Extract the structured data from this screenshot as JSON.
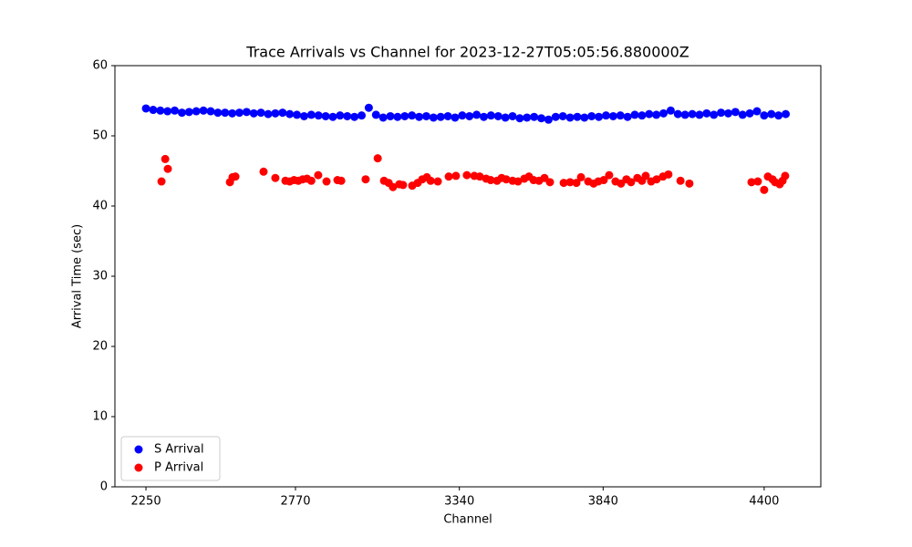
{
  "chart_data": {
    "type": "scatter",
    "title": "Trace Arrivals vs Channel for 2023-12-27T05:05:56.880000Z",
    "x_label": "Channel",
    "y_label": "Arrival Time (sec)",
    "xlim": [
      2142,
      4597
    ],
    "ylim": [
      0,
      60
    ],
    "xticks": [
      2250,
      2770,
      3340,
      3840,
      4400
    ],
    "yticks": [
      0,
      10,
      20,
      30,
      40,
      50,
      60
    ],
    "grid": false,
    "legend": "lower left",
    "series": [
      {
        "name": "S Arrival",
        "color": "#0000ff",
        "x": [
          2250,
          2275,
          2300,
          2325,
          2350,
          2375,
          2400,
          2425,
          2450,
          2475,
          2500,
          2525,
          2550,
          2575,
          2600,
          2625,
          2650,
          2675,
          2700,
          2725,
          2750,
          2775,
          2800,
          2825,
          2850,
          2875,
          2900,
          2925,
          2950,
          2975,
          3000,
          3025,
          3050,
          3075,
          3100,
          3125,
          3150,
          3175,
          3200,
          3225,
          3250,
          3275,
          3300,
          3325,
          3350,
          3375,
          3400,
          3425,
          3450,
          3475,
          3500,
          3525,
          3550,
          3575,
          3600,
          3625,
          3650,
          3675,
          3700,
          3725,
          3750,
          3775,
          3800,
          3825,
          3850,
          3875,
          3900,
          3925,
          3950,
          3975,
          4000,
          4025,
          4050,
          4075,
          4100,
          4125,
          4150,
          4175,
          4200,
          4225,
          4250,
          4275,
          4300,
          4325,
          4350,
          4375,
          4400,
          4425,
          4450,
          4475
        ],
        "values": [
          53.9,
          53.7,
          53.6,
          53.5,
          53.6,
          53.3,
          53.4,
          53.5,
          53.6,
          53.5,
          53.3,
          53.3,
          53.2,
          53.3,
          53.4,
          53.2,
          53.3,
          53.1,
          53.2,
          53.3,
          53.1,
          53.0,
          52.8,
          53.0,
          52.9,
          52.8,
          52.7,
          52.9,
          52.8,
          52.7,
          52.9,
          54.0,
          53.0,
          52.6,
          52.8,
          52.7,
          52.8,
          52.9,
          52.7,
          52.8,
          52.6,
          52.7,
          52.8,
          52.6,
          52.9,
          52.8,
          53.0,
          52.7,
          52.9,
          52.8,
          52.6,
          52.8,
          52.5,
          52.6,
          52.7,
          52.5,
          52.3,
          52.7,
          52.8,
          52.6,
          52.7,
          52.6,
          52.8,
          52.7,
          52.9,
          52.8,
          52.9,
          52.7,
          53.0,
          52.9,
          53.1,
          53.0,
          53.2,
          53.6,
          53.1,
          53.0,
          53.1,
          53.0,
          53.2,
          53.0,
          53.3,
          53.2,
          53.4,
          53.0,
          53.2,
          53.5,
          52.9,
          53.1,
          52.9,
          53.1
        ]
      },
      {
        "name": "P Arrival",
        "color": "#ff0000",
        "x": [
          2304,
          2317,
          2326,
          2542,
          2551,
          2561,
          2659,
          2700,
          2735,
          2750,
          2765,
          2780,
          2795,
          2810,
          2825,
          2849,
          2878,
          2916,
          2929,
          3014,
          3056,
          3078,
          3094,
          3109,
          3131,
          3144,
          3176,
          3195,
          3211,
          3227,
          3240,
          3265,
          3303,
          3328,
          3366,
          3392,
          3411,
          3433,
          3449,
          3471,
          3487,
          3503,
          3525,
          3544,
          3566,
          3582,
          3598,
          3617,
          3636,
          3655,
          3703,
          3725,
          3747,
          3763,
          3788,
          3807,
          3823,
          3842,
          3861,
          3883,
          3902,
          3921,
          3937,
          3959,
          3975,
          3988,
          4007,
          4026,
          4048,
          4067,
          4109,
          4140,
          4356,
          4378,
          4400,
          4413,
          4429,
          4438,
          4454,
          4464,
          4473
        ],
        "values": [
          43.5,
          46.7,
          45.3,
          43.4,
          44.1,
          44.2,
          44.9,
          44.0,
          43.6,
          43.5,
          43.7,
          43.6,
          43.8,
          43.9,
          43.6,
          44.4,
          43.5,
          43.7,
          43.6,
          43.8,
          46.8,
          43.6,
          43.3,
          42.7,
          43.1,
          43.0,
          42.9,
          43.3,
          43.8,
          44.1,
          43.6,
          43.5,
          44.2,
          44.3,
          44.4,
          44.3,
          44.2,
          43.9,
          43.7,
          43.6,
          44.0,
          43.8,
          43.6,
          43.5,
          43.9,
          44.2,
          43.7,
          43.6,
          44.0,
          43.4,
          43.3,
          43.4,
          43.3,
          44.1,
          43.5,
          43.2,
          43.5,
          43.7,
          44.4,
          43.5,
          43.2,
          43.8,
          43.4,
          44.0,
          43.6,
          44.3,
          43.5,
          43.8,
          44.2,
          44.5,
          43.6,
          43.2,
          43.4,
          43.5,
          42.3,
          44.2,
          43.8,
          43.4,
          43.1,
          43.6,
          44.3
        ]
      }
    ]
  }
}
